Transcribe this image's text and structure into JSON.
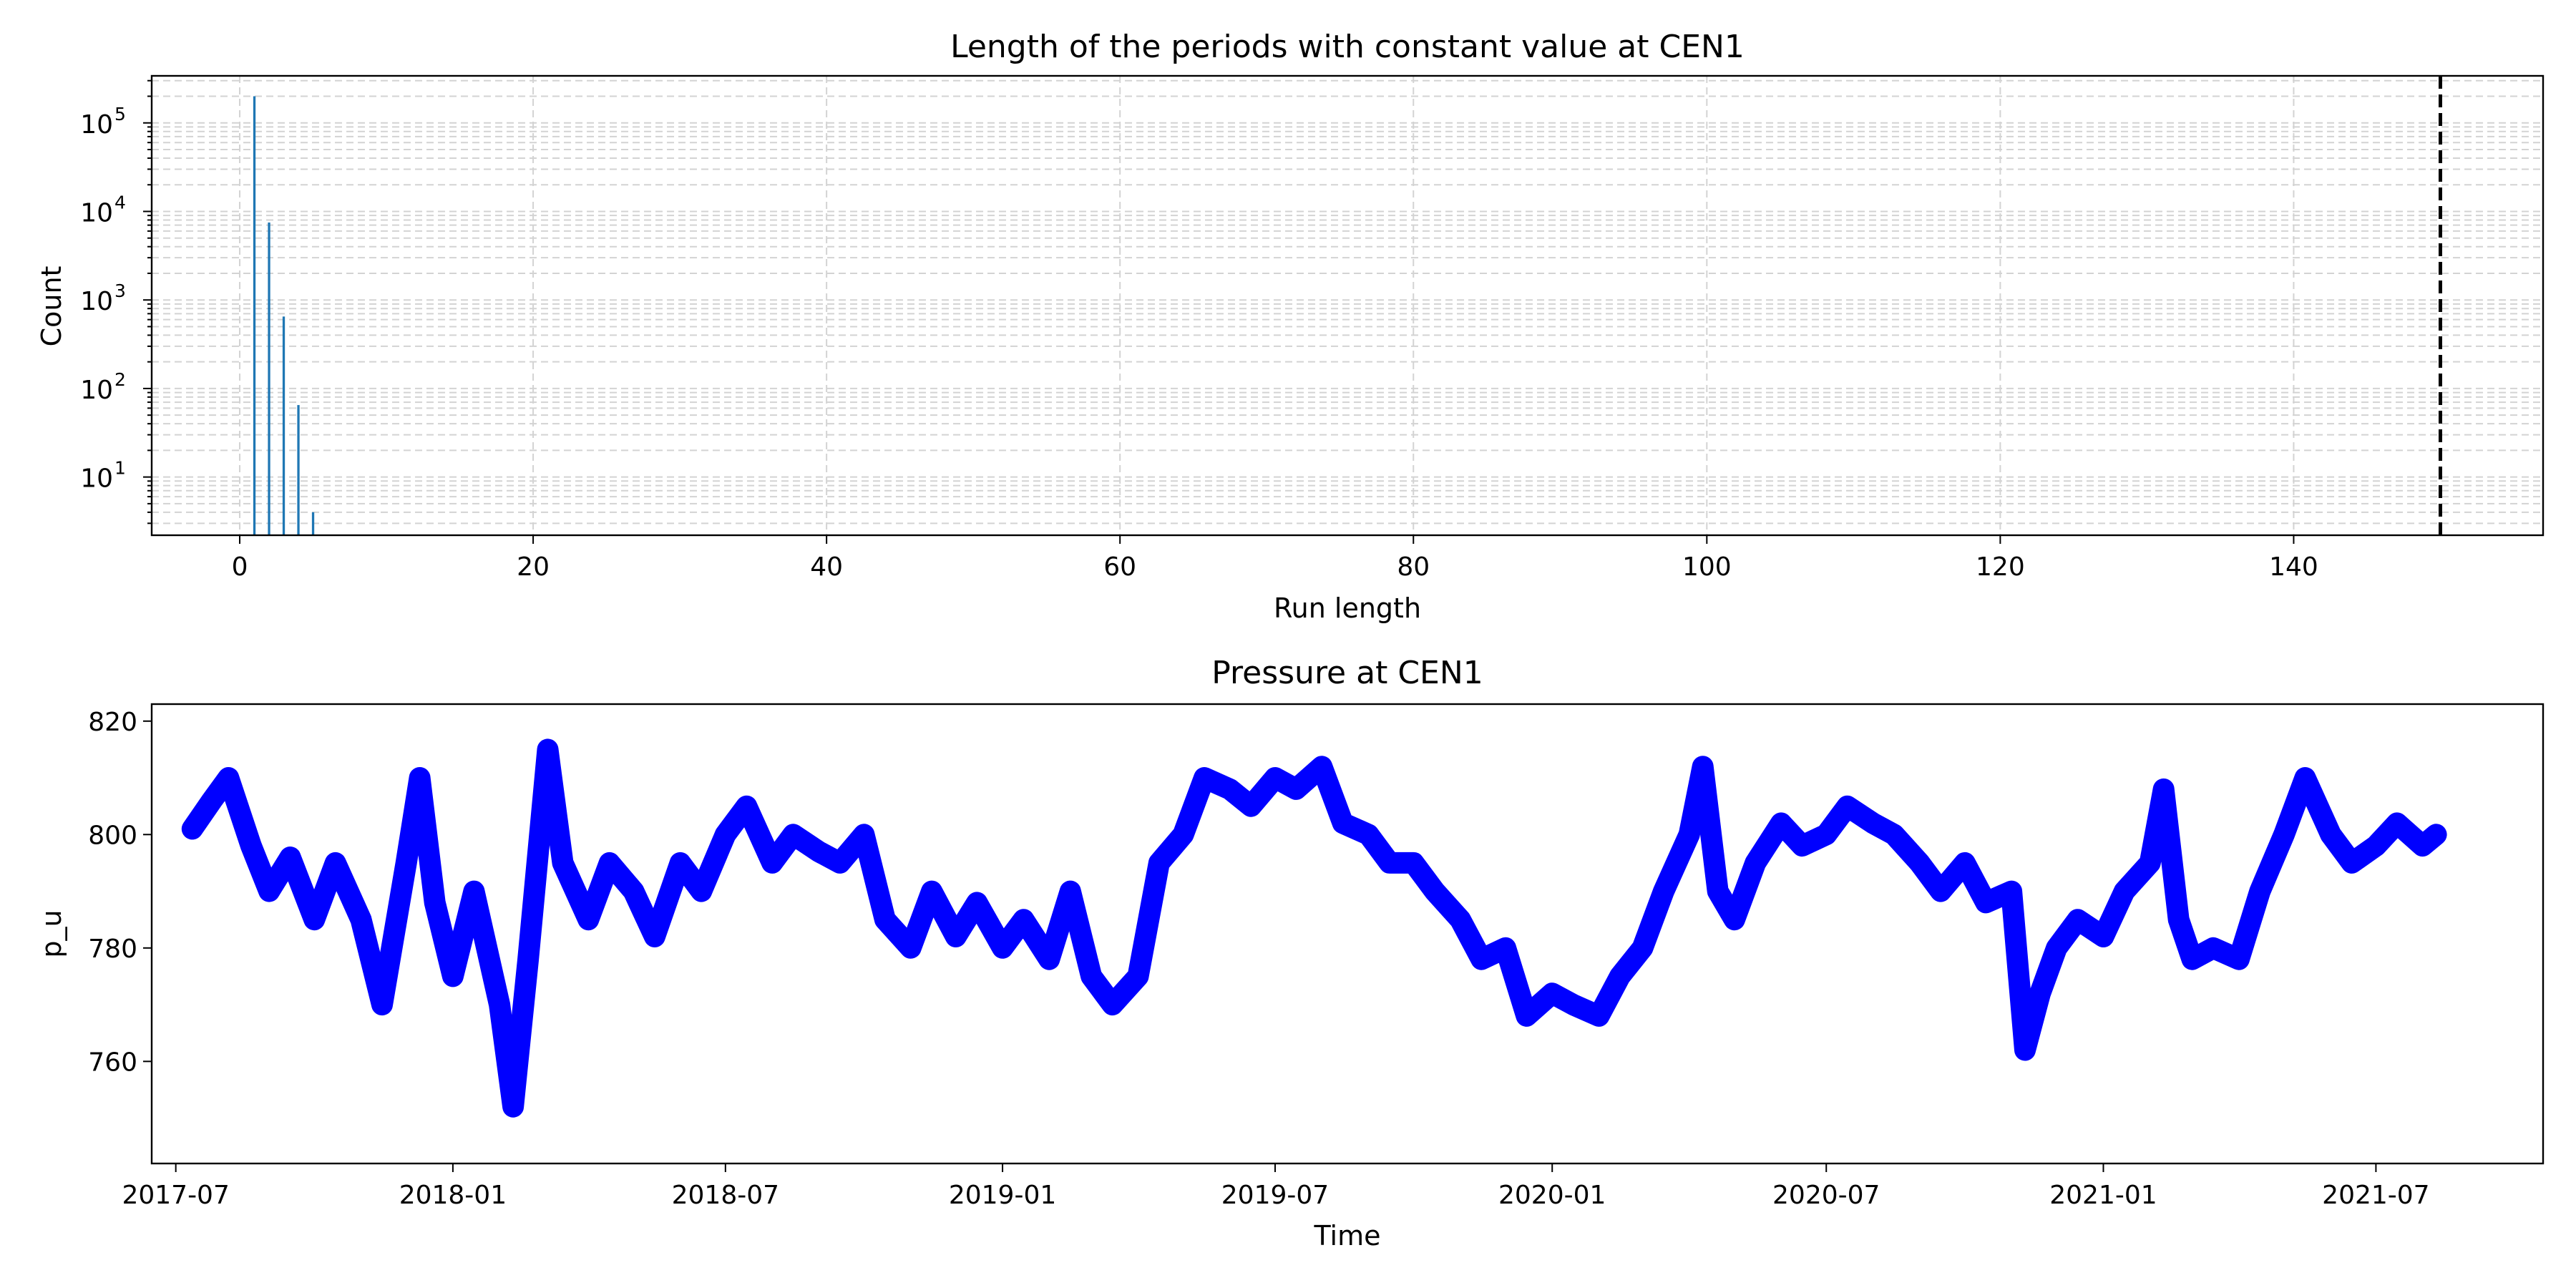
{
  "colors": {
    "bar": "#1f77b4",
    "series": "#0000ff",
    "threshold": "#000000",
    "grid": "#d3d3d3"
  },
  "chart_data": [
    {
      "type": "bar",
      "title": "Length of the periods with constant value at CEN1",
      "xlabel": "Run length",
      "ylabel": "Count",
      "yscale": "log",
      "xlim": [
        -6,
        157
      ],
      "ylim": [
        2.2,
        340000
      ],
      "xticks": [
        0,
        20,
        40,
        60,
        80,
        100,
        120,
        140
      ],
      "ytick_exponents": [
        1,
        2,
        3,
        4,
        5
      ],
      "grid": "dashed, both axes, major and minor",
      "legend": "none",
      "bars": [
        {
          "x": 1,
          "count": 200000
        },
        {
          "x": 2,
          "count": 7500
        },
        {
          "x": 3,
          "count": 650
        },
        {
          "x": 4,
          "count": 65
        },
        {
          "x": 5,
          "count": 4
        }
      ],
      "threshold_line": {
        "x": 150,
        "style": "dashed"
      }
    },
    {
      "type": "line",
      "title": "Pressure at CEN1",
      "xlabel": "Time",
      "ylabel": "p_u",
      "xlim": [
        "2017-06-15",
        "2021-10-20"
      ],
      "ylim": [
        742,
        823
      ],
      "xticks": [
        "2017-07",
        "2018-01",
        "2018-07",
        "2019-01",
        "2019-07",
        "2020-01",
        "2020-07",
        "2021-01",
        "2021-07"
      ],
      "yticks": [
        760,
        780,
        800,
        820
      ],
      "grid": "off",
      "legend": "none",
      "series": [
        {
          "points": [
            [
              "2017-07-12",
              801
            ],
            [
              "2017-07-25",
              806
            ],
            [
              "2017-08-05",
              810
            ],
            [
              "2017-08-20",
              798
            ],
            [
              "2017-09-01",
              790
            ],
            [
              "2017-09-15",
              796
            ],
            [
              "2017-10-01",
              785
            ],
            [
              "2017-10-15",
              795
            ],
            [
              "2017-11-01",
              785
            ],
            [
              "2017-11-15",
              770
            ],
            [
              "2017-12-01",
              795
            ],
            [
              "2017-12-10",
              810
            ],
            [
              "2017-12-20",
              788
            ],
            [
              "2018-01-01",
              775
            ],
            [
              "2018-01-15",
              790
            ],
            [
              "2018-02-01",
              770
            ],
            [
              "2018-02-10",
              752
            ],
            [
              "2018-02-20",
              778
            ],
            [
              "2018-03-05",
              815
            ],
            [
              "2018-03-15",
              795
            ],
            [
              "2018-04-01",
              785
            ],
            [
              "2018-04-15",
              795
            ],
            [
              "2018-05-01",
              790
            ],
            [
              "2018-05-15",
              782
            ],
            [
              "2018-06-01",
              795
            ],
            [
              "2018-06-15",
              790
            ],
            [
              "2018-07-01",
              800
            ],
            [
              "2018-07-15",
              805
            ],
            [
              "2018-08-01",
              795
            ],
            [
              "2018-08-15",
              800
            ],
            [
              "2018-09-01",
              797
            ],
            [
              "2018-09-15",
              795
            ],
            [
              "2018-10-01",
              800
            ],
            [
              "2018-10-15",
              785
            ],
            [
              "2018-11-01",
              780
            ],
            [
              "2018-11-15",
              790
            ],
            [
              "2018-12-01",
              782
            ],
            [
              "2018-12-15",
              788
            ],
            [
              "2019-01-01",
              780
            ],
            [
              "2019-01-15",
              785
            ],
            [
              "2019-02-01",
              778
            ],
            [
              "2019-02-15",
              790
            ],
            [
              "2019-03-01",
              775
            ],
            [
              "2019-03-15",
              770
            ],
            [
              "2019-04-01",
              775
            ],
            [
              "2019-04-15",
              795
            ],
            [
              "2019-05-01",
              800
            ],
            [
              "2019-05-15",
              810
            ],
            [
              "2019-06-01",
              808
            ],
            [
              "2019-06-15",
              805
            ],
            [
              "2019-07-01",
              810
            ],
            [
              "2019-07-15",
              808
            ],
            [
              "2019-08-01",
              812
            ],
            [
              "2019-08-15",
              802
            ],
            [
              "2019-09-01",
              800
            ],
            [
              "2019-09-15",
              795
            ],
            [
              "2019-10-01",
              795
            ],
            [
              "2019-10-15",
              790
            ],
            [
              "2019-11-01",
              785
            ],
            [
              "2019-11-15",
              778
            ],
            [
              "2019-12-01",
              780
            ],
            [
              "2019-12-15",
              768
            ],
            [
              "2020-01-01",
              772
            ],
            [
              "2020-01-15",
              770
            ],
            [
              "2020-02-01",
              768
            ],
            [
              "2020-02-15",
              775
            ],
            [
              "2020-03-01",
              780
            ],
            [
              "2020-03-15",
              790
            ],
            [
              "2020-04-01",
              800
            ],
            [
              "2020-04-10",
              812
            ],
            [
              "2020-04-20",
              790
            ],
            [
              "2020-05-01",
              785
            ],
            [
              "2020-05-15",
              795
            ],
            [
              "2020-06-01",
              802
            ],
            [
              "2020-06-15",
              798
            ],
            [
              "2020-07-01",
              800
            ],
            [
              "2020-07-15",
              805
            ],
            [
              "2020-08-01",
              802
            ],
            [
              "2020-08-15",
              800
            ],
            [
              "2020-09-01",
              795
            ],
            [
              "2020-09-15",
              790
            ],
            [
              "2020-10-01",
              795
            ],
            [
              "2020-10-15",
              788
            ],
            [
              "2020-11-01",
              790
            ],
            [
              "2020-11-10",
              762
            ],
            [
              "2020-11-20",
              772
            ],
            [
              "2020-12-01",
              780
            ],
            [
              "2020-12-15",
              785
            ],
            [
              "2021-01-01",
              782
            ],
            [
              "2021-01-15",
              790
            ],
            [
              "2021-02-01",
              795
            ],
            [
              "2021-02-10",
              808
            ],
            [
              "2021-02-20",
              785
            ],
            [
              "2021-03-01",
              778
            ],
            [
              "2021-03-15",
              780
            ],
            [
              "2021-04-01",
              778
            ],
            [
              "2021-04-15",
              790
            ],
            [
              "2021-05-01",
              800
            ],
            [
              "2021-05-15",
              810
            ],
            [
              "2021-06-01",
              800
            ],
            [
              "2021-06-15",
              795
            ],
            [
              "2021-07-01",
              798
            ],
            [
              "2021-07-15",
              802
            ],
            [
              "2021-08-01",
              798
            ],
            [
              "2021-08-10",
              800
            ]
          ]
        }
      ]
    }
  ]
}
